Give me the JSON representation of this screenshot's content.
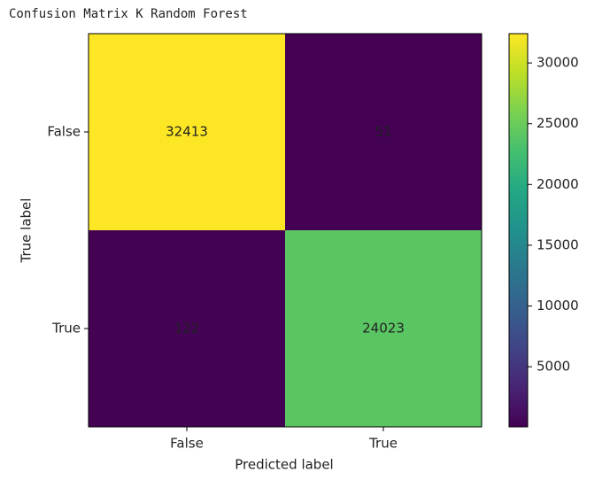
{
  "chart_data": {
    "type": "heatmap",
    "title": "Confusion Matrix K Random Forest",
    "x_categories": [
      "False",
      "True"
    ],
    "y_categories": [
      "False",
      "True"
    ],
    "values": [
      [
        32413,
        51
      ],
      [
        122,
        24023
      ]
    ],
    "xlabel": "Predicted label",
    "ylabel": "True label",
    "colormap": "viridis",
    "clim": [
      51,
      32413
    ],
    "colorbar_ticks": [
      5000,
      10000,
      15000,
      20000,
      25000,
      30000
    ]
  }
}
